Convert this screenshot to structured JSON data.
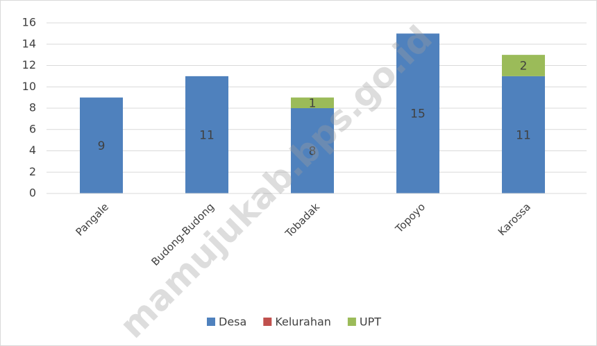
{
  "chart_data": {
    "type": "bar",
    "stacked": true,
    "watermark": "mamujukab.bps.go.id",
    "categories": [
      "Pangale",
      "Budong-Budong",
      "Tobadak",
      "Topoyo",
      "Karossa"
    ],
    "series": [
      {
        "name": "Desa",
        "color": "#4f81bd",
        "values": [
          9,
          11,
          8,
          15,
          11
        ]
      },
      {
        "name": "Kelurahan",
        "color": "#c0504d",
        "values": [
          0,
          0,
          0,
          0,
          0
        ]
      },
      {
        "name": "UPT",
        "color": "#9bbb59",
        "values": [
          0,
          0,
          1,
          0,
          2
        ]
      }
    ],
    "ylim": [
      0,
      16
    ],
    "yticks": [
      0,
      2,
      4,
      6,
      8,
      10,
      12,
      14,
      16
    ],
    "grid": true,
    "legend": "bottom",
    "data_labels": true
  }
}
